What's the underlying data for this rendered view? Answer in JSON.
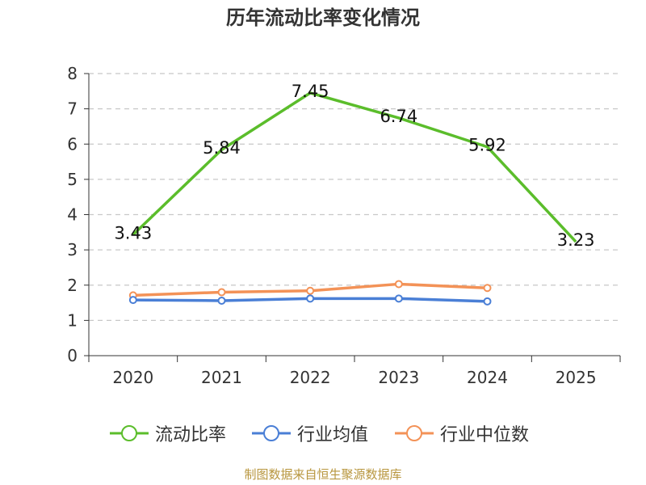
{
  "chart_data": {
    "type": "line",
    "title": "历年流动比率变化情况",
    "categories": [
      "2020",
      "2021",
      "2022",
      "2023",
      "2024",
      "2025"
    ],
    "ylim": [
      0,
      8
    ],
    "yticks": [
      0,
      1,
      2,
      3,
      4,
      5,
      6,
      7,
      8
    ],
    "grid": true,
    "legend_position": "bottom",
    "series": [
      {
        "name": "流动比率",
        "color": "#5bbd2b",
        "marker": "none",
        "show_labels": true,
        "values": [
          3.43,
          5.84,
          7.45,
          6.74,
          5.92,
          3.23
        ],
        "labels": [
          "3.43",
          "5.84",
          "7.45",
          "6.74",
          "5.92",
          "3.23"
        ]
      },
      {
        "name": "行业均值",
        "color": "#4a7fd6",
        "marker": "circle",
        "show_labels": false,
        "values": [
          1.58,
          1.56,
          1.62,
          1.62,
          1.54,
          null
        ]
      },
      {
        "name": "行业中位数",
        "color": "#f39257",
        "marker": "circle",
        "show_labels": false,
        "values": [
          1.71,
          1.8,
          1.84,
          2.03,
          1.92,
          null
        ]
      }
    ]
  },
  "source_note": "制图数据来自恒生聚源数据库"
}
